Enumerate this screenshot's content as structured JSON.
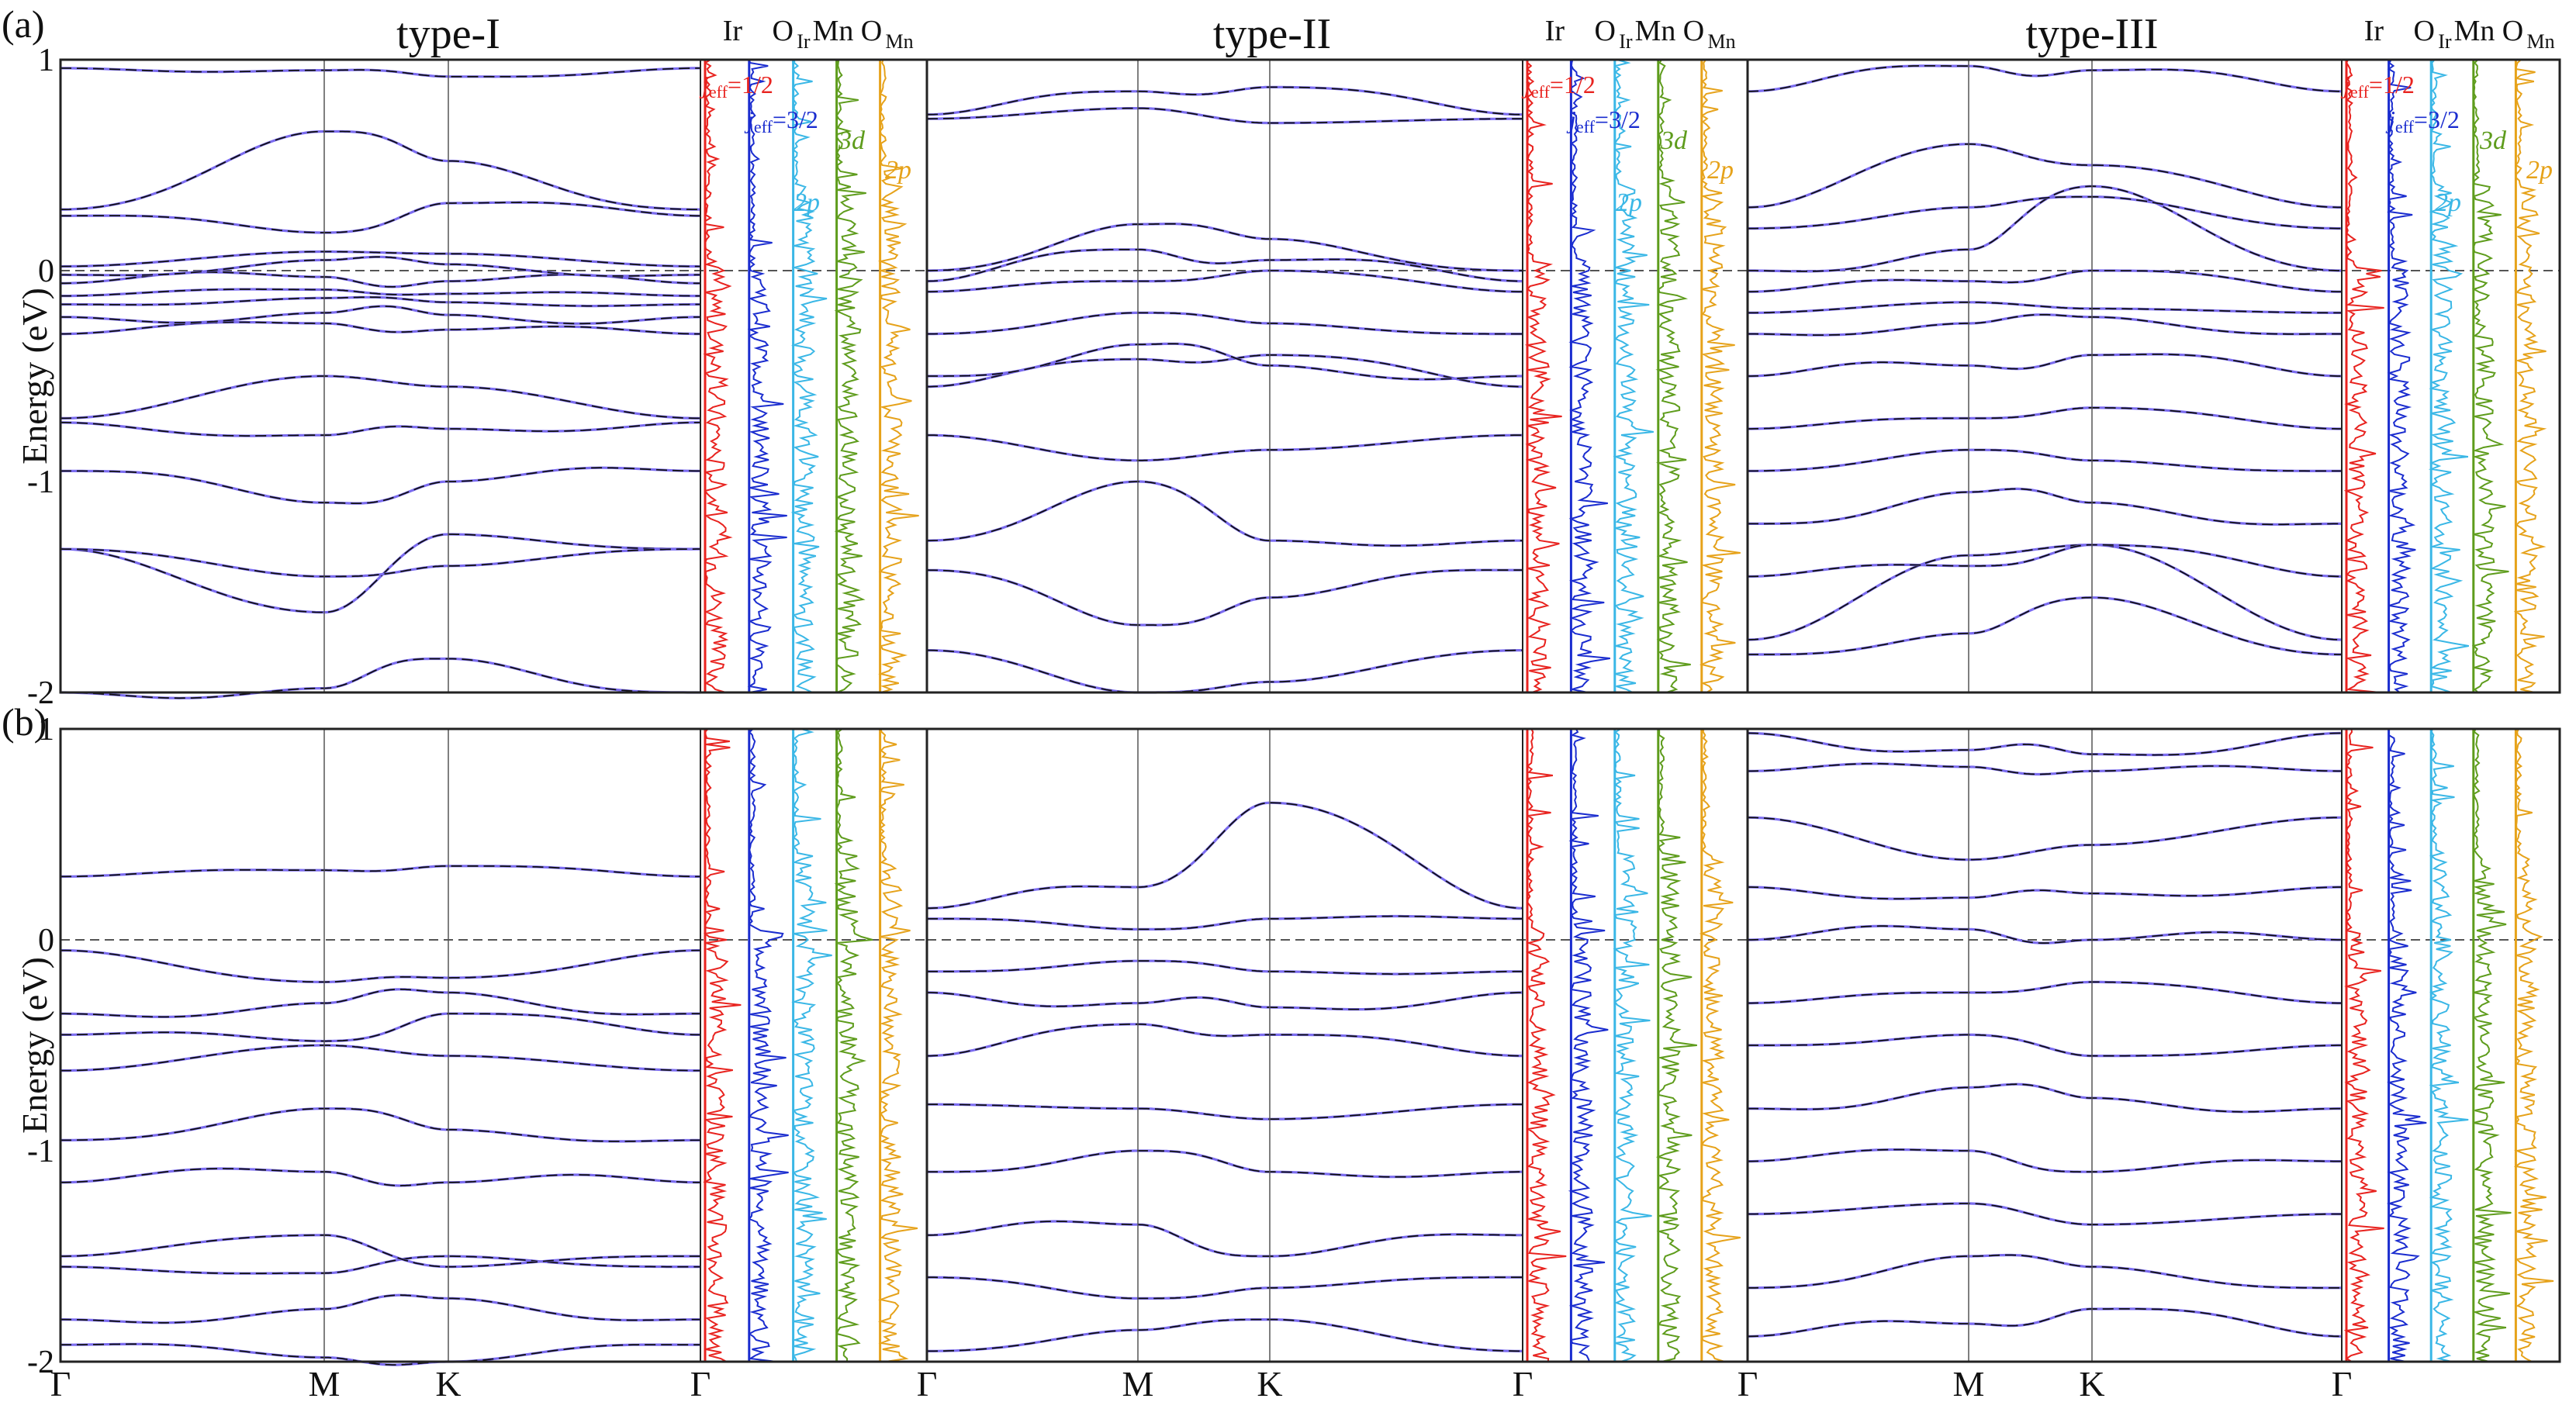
{
  "figure": {
    "panel_labels": [
      "(a)",
      "(b)"
    ],
    "column_titles": [
      "type-I",
      "type-II",
      "type-III"
    ],
    "ylabel": "Energy (eV)",
    "yticks": [
      "1",
      "0",
      "-1",
      "-2"
    ],
    "kpath": [
      "Γ",
      "M",
      "K",
      "Γ"
    ],
    "dos_headers": [
      "Ir",
      "O",
      "Ir",
      "Mn",
      "O",
      "Mn"
    ],
    "dos_labels": {
      "jeff_half": {
        "j": "j",
        "sub": "eff",
        "rest": "=1/2"
      },
      "jeff_threehalf": {
        "j": "j",
        "sub": "eff",
        "rest": "=3/2"
      },
      "O2p": "2p",
      "Mn3d": "3d",
      "OMn2p": "2p"
    },
    "colors": {
      "band_dft": "#7b6cf0",
      "band_fit": "#111111",
      "jeff_half": "#e8231f",
      "jeff_threehalf": "#1a2ccf",
      "O_Ir": "#3ab7e6",
      "Mn": "#5e9c1c",
      "O_Mn": "#e6a21a",
      "fermi": "#555555"
    }
  },
  "chart_data": [
    {
      "type": "line",
      "panel": "(a)",
      "title": "type-I",
      "x": [
        "Γ",
        "M",
        "K",
        "Γ"
      ],
      "ylabel": "Energy (eV)",
      "ylim": [
        -2,
        1
      ],
      "bands_at_kpoints": [
        [
          -2.0,
          -1.98,
          -1.84,
          -2.0
        ],
        [
          -1.32,
          -1.62,
          -1.25,
          -1.32
        ],
        [
          -1.32,
          -1.45,
          -1.4,
          -1.32
        ],
        [
          -0.95,
          -1.1,
          -1.0,
          -0.95
        ],
        [
          -0.72,
          -0.78,
          -0.75,
          -0.72
        ],
        [
          -0.7,
          -0.5,
          -0.55,
          -0.7
        ],
        [
          -0.3,
          -0.25,
          -0.28,
          -0.3
        ],
        [
          -0.22,
          -0.2,
          -0.21,
          -0.22
        ],
        [
          -0.16,
          -0.13,
          -0.15,
          -0.16
        ],
        [
          -0.12,
          -0.09,
          -0.11,
          -0.12
        ],
        [
          -0.06,
          -0.03,
          -0.05,
          -0.06
        ],
        [
          -0.02,
          0.05,
          0.03,
          -0.02
        ],
        [
          0.02,
          0.09,
          0.08,
          0.02
        ],
        [
          0.26,
          0.18,
          0.32,
          0.26
        ],
        [
          0.29,
          0.66,
          0.52,
          0.29
        ],
        [
          0.96,
          0.95,
          0.92,
          0.96
        ]
      ],
      "dos_channels": [
        "jeff=1/2",
        "jeff=3/2",
        "O_Ir 2p",
        "Mn 3d",
        "O_Mn 2p"
      ]
    },
    {
      "type": "line",
      "panel": "(a)",
      "title": "type-II",
      "x": [
        "Γ",
        "M",
        "K",
        "Γ"
      ],
      "ylabel": "Energy (eV)",
      "ylim": [
        -2,
        1
      ],
      "bands_at_kpoints": [
        [
          -1.8,
          -2.0,
          -1.95,
          -1.8
        ],
        [
          -1.42,
          -1.68,
          -1.55,
          -1.42
        ],
        [
          -1.28,
          -1.0,
          -1.28,
          -1.28
        ],
        [
          -0.78,
          -0.9,
          -0.85,
          -0.78
        ],
        [
          -0.55,
          -0.42,
          -0.4,
          -0.55
        ],
        [
          -0.5,
          -0.35,
          -0.45,
          -0.5
        ],
        [
          -0.3,
          -0.2,
          -0.25,
          -0.3
        ],
        [
          -0.1,
          -0.05,
          0.0,
          -0.1
        ],
        [
          -0.05,
          0.1,
          0.05,
          -0.05
        ],
        [
          0.0,
          0.22,
          0.15,
          0.0
        ],
        [
          0.72,
          0.77,
          0.7,
          0.72
        ],
        [
          0.74,
          0.85,
          0.87,
          0.74
        ]
      ],
      "dos_channels": [
        "jeff=1/2",
        "jeff=3/2",
        "O_Ir 2p",
        "Mn 3d",
        "O_Mn 2p"
      ]
    },
    {
      "type": "line",
      "panel": "(a)",
      "title": "type-III",
      "x": [
        "Γ",
        "M",
        "K",
        "Γ"
      ],
      "ylabel": "Energy (eV)",
      "ylim": [
        -2,
        1
      ],
      "bands_at_kpoints": [
        [
          -1.82,
          -1.72,
          -1.55,
          -1.82
        ],
        [
          -1.75,
          -1.35,
          -1.3,
          -1.75
        ],
        [
          -1.45,
          -1.4,
          -1.3,
          -1.45
        ],
        [
          -1.2,
          -1.05,
          -1.1,
          -1.2
        ],
        [
          -0.95,
          -0.85,
          -0.9,
          -0.95
        ],
        [
          -0.75,
          -0.7,
          -0.65,
          -0.75
        ],
        [
          -0.5,
          -0.45,
          -0.4,
          -0.5
        ],
        [
          -0.3,
          -0.25,
          -0.22,
          -0.3
        ],
        [
          -0.2,
          -0.15,
          -0.18,
          -0.2
        ],
        [
          -0.1,
          -0.05,
          0.0,
          -0.1
        ],
        [
          0.0,
          0.1,
          0.4,
          0.0
        ],
        [
          0.2,
          0.3,
          0.35,
          0.2
        ],
        [
          0.3,
          0.6,
          0.5,
          0.3
        ],
        [
          0.85,
          0.97,
          0.95,
          0.85
        ]
      ],
      "dos_channels": [
        "jeff=1/2",
        "jeff=3/2",
        "O_Ir 2p",
        "Mn 3d",
        "O_Mn 2p"
      ]
    },
    {
      "type": "line",
      "panel": "(b)",
      "title": "type-I",
      "x": [
        "Γ",
        "M",
        "K",
        "Γ"
      ],
      "ylabel": "Energy (eV)",
      "ylim": [
        -2,
        1
      ],
      "bands_at_kpoints": [
        [
          -1.92,
          -1.98,
          -2.0,
          -1.92
        ],
        [
          -1.8,
          -1.75,
          -1.7,
          -1.8
        ],
        [
          -1.55,
          -1.58,
          -1.5,
          -1.55
        ],
        [
          -1.5,
          -1.4,
          -1.55,
          -1.5
        ],
        [
          -1.15,
          -1.1,
          -1.15,
          -1.15
        ],
        [
          -0.95,
          -0.8,
          -0.9,
          -0.95
        ],
        [
          -0.62,
          -0.5,
          -0.55,
          -0.62
        ],
        [
          -0.45,
          -0.48,
          -0.35,
          -0.45
        ],
        [
          -0.35,
          -0.3,
          -0.25,
          -0.35
        ],
        [
          -0.05,
          -0.2,
          -0.18,
          -0.05
        ],
        [
          0.3,
          0.33,
          0.35,
          0.3
        ]
      ],
      "dos_channels": [
        "jeff=1/2",
        "jeff=3/2",
        "O_Ir 2p",
        "Mn 3d",
        "O_Mn 2p"
      ]
    },
    {
      "type": "line",
      "panel": "(b)",
      "title": "type-II",
      "x": [
        "Γ",
        "M",
        "K",
        "Γ"
      ],
      "ylabel": "Energy (eV)",
      "ylim": [
        -2,
        1
      ],
      "bands_at_kpoints": [
        [
          -1.95,
          -1.85,
          -1.8,
          -1.95
        ],
        [
          -1.6,
          -1.7,
          -1.65,
          -1.6
        ],
        [
          -1.4,
          -1.35,
          -1.5,
          -1.4
        ],
        [
          -1.1,
          -1.0,
          -1.1,
          -1.1
        ],
        [
          -0.78,
          -0.8,
          -0.85,
          -0.78
        ],
        [
          -0.55,
          -0.4,
          -0.45,
          -0.55
        ],
        [
          -0.25,
          -0.3,
          -0.32,
          -0.25
        ],
        [
          -0.15,
          -0.1,
          -0.15,
          -0.15
        ],
        [
          0.1,
          0.05,
          0.1,
          0.1
        ],
        [
          0.15,
          0.25,
          0.65,
          0.15
        ]
      ],
      "dos_channels": [
        "jeff=1/2",
        "jeff=3/2",
        "O_Ir 2p",
        "Mn 3d",
        "O_Mn 2p"
      ]
    },
    {
      "type": "line",
      "panel": "(b)",
      "title": "type-III",
      "x": [
        "Γ",
        "M",
        "K",
        "Γ"
      ],
      "ylabel": "Energy (eV)",
      "ylim": [
        -2,
        1
      ],
      "bands_at_kpoints": [
        [
          -1.88,
          -1.82,
          -1.75,
          -1.88
        ],
        [
          -1.65,
          -1.5,
          -1.55,
          -1.65
        ],
        [
          -1.3,
          -1.25,
          -1.35,
          -1.3
        ],
        [
          -1.05,
          -1.0,
          -1.1,
          -1.05
        ],
        [
          -0.8,
          -0.7,
          -0.75,
          -0.8
        ],
        [
          -0.5,
          -0.45,
          -0.55,
          -0.5
        ],
        [
          -0.3,
          -0.25,
          -0.2,
          -0.3
        ],
        [
          0.0,
          0.05,
          0.0,
          0.0
        ],
        [
          0.25,
          0.2,
          0.22,
          0.25
        ],
        [
          0.58,
          0.38,
          0.45,
          0.58
        ],
        [
          0.8,
          0.82,
          0.8,
          0.8
        ],
        [
          0.98,
          0.9,
          0.88,
          0.98
        ]
      ],
      "dos_channels": [
        "jeff=1/2",
        "jeff=3/2",
        "O_Ir 2p",
        "Mn 3d",
        "O_Mn 2p"
      ]
    }
  ]
}
